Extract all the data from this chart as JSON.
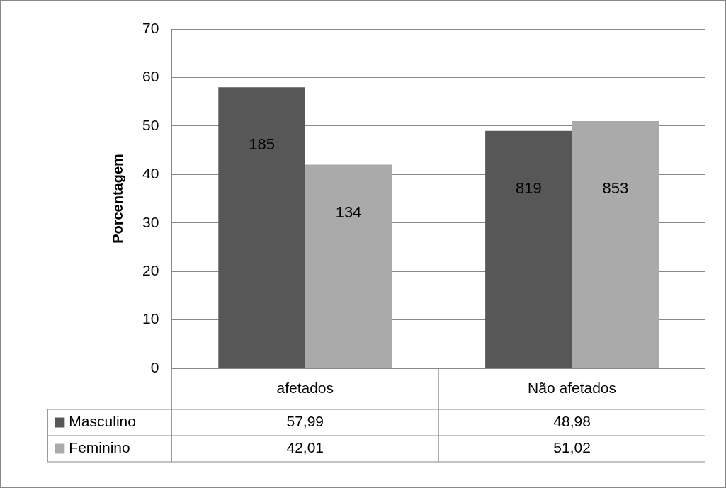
{
  "chart_data": {
    "type": "bar",
    "ylabel": "Porcentagem",
    "categories": [
      "afetados",
      "Não afetados"
    ],
    "series": [
      {
        "name": "Masculino",
        "color": "#575757",
        "values": [
          57.99,
          48.98
        ],
        "value_labels": [
          "57,99",
          "48,98"
        ]
      },
      {
        "name": "Feminino",
        "color": "#aaaaaa",
        "values": [
          42.01,
          51.02
        ],
        "value_labels": [
          "42,01",
          "51,02"
        ]
      }
    ],
    "annotations": [
      {
        "text": "185",
        "x": "afetados",
        "y": 46
      },
      {
        "text": "134",
        "x": "afetados",
        "y": 32
      },
      {
        "text": "819",
        "x": "Não afetados",
        "y": 37
      },
      {
        "text": "853",
        "x": "Não afetados",
        "y": 37
      }
    ],
    "ylim": [
      0,
      70
    ],
    "yticks": [
      0,
      10,
      20,
      30,
      40,
      50,
      60,
      70
    ],
    "grid": "y",
    "legend": "bottom left"
  }
}
